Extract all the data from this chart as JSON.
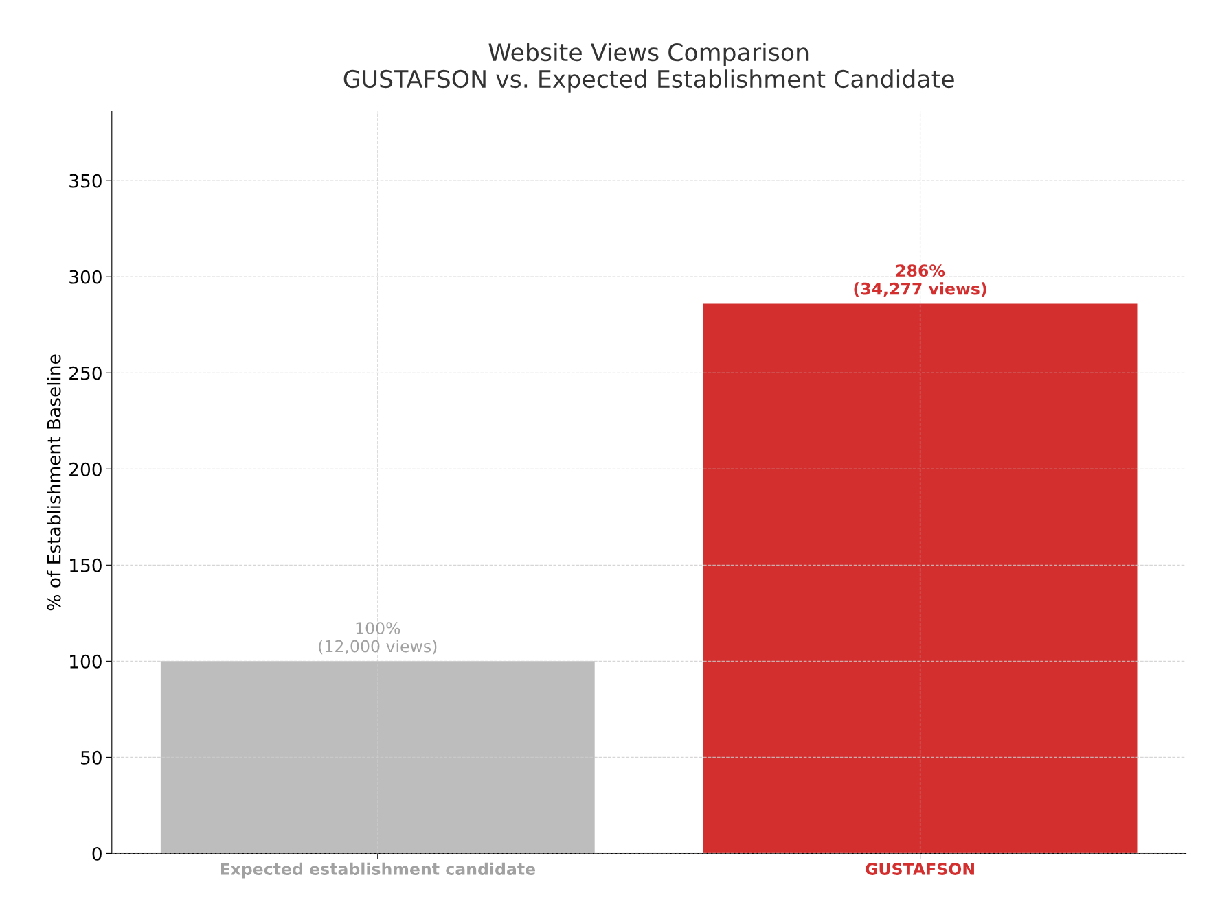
{
  "chart_data": {
    "type": "bar",
    "title": "Website Views Comparison\nGUSTAFSON vs. Expected Establishment Candidate",
    "ylabel": "% of Establishment Baseline",
    "categories": [
      "Expected establishment candidate",
      "GUSTAFSON"
    ],
    "values": [
      100,
      286
    ],
    "colors": [
      "#bdbdbd",
      "#d32f2f"
    ],
    "value_labels": [
      "100%\n(12,000 views)",
      "286%\n(34,277 views)"
    ],
    "ylim": [
      0,
      386
    ],
    "yticks": [
      0,
      50,
      100,
      150,
      200,
      250,
      300,
      350
    ],
    "grid": true,
    "legend": false
  }
}
